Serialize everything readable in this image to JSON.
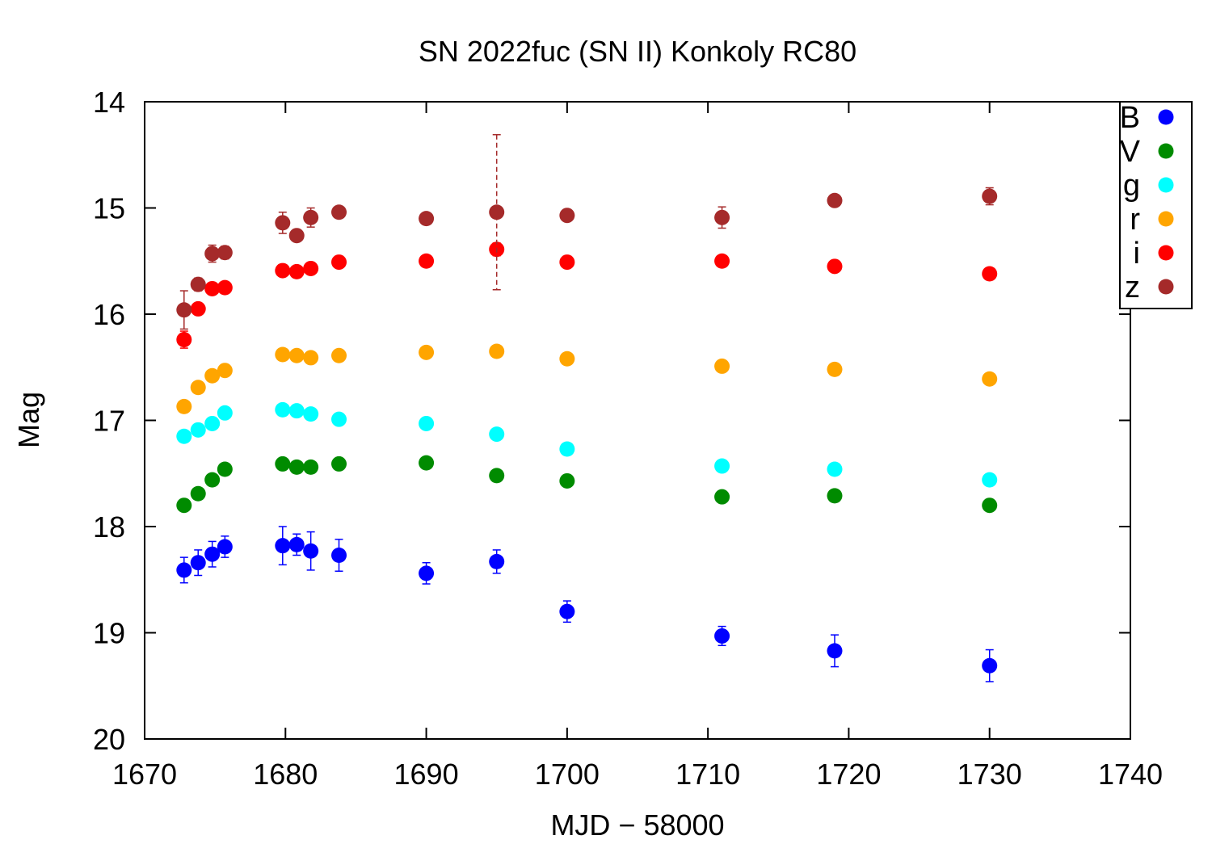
{
  "chart_data": {
    "type": "scatter",
    "title": "SN 2022fuc (SN II) Konkoly RC80",
    "xlabel": "MJD − 58000",
    "ylabel": "Mag",
    "xlim": [
      1670,
      1740
    ],
    "ylim": [
      14,
      20
    ],
    "y_inverted": true,
    "x_ticks": [
      "1670",
      "1680",
      "1690",
      "1700",
      "1710",
      "1720",
      "1730",
      "1740"
    ],
    "y_ticks": [
      "14",
      "15",
      "16",
      "17",
      "18",
      "19",
      "20"
    ],
    "legend_position": "top-right",
    "grid": false,
    "series": [
      {
        "name": "B",
        "color": "#0000ff",
        "points": [
          {
            "x": 1672.8,
            "y": 18.41,
            "err": 0.12
          },
          {
            "x": 1673.8,
            "y": 18.34,
            "err": 0.12
          },
          {
            "x": 1674.8,
            "y": 18.26,
            "err": 0.12
          },
          {
            "x": 1675.7,
            "y": 18.19,
            "err": 0.1
          },
          {
            "x": 1679.8,
            "y": 18.18,
            "err": 0.18
          },
          {
            "x": 1680.8,
            "y": 18.17,
            "err": 0.1
          },
          {
            "x": 1681.8,
            "y": 18.23,
            "err": 0.18
          },
          {
            "x": 1683.8,
            "y": 18.27,
            "err": 0.15
          },
          {
            "x": 1690.0,
            "y": 18.44,
            "err": 0.1
          },
          {
            "x": 1695.0,
            "y": 18.33,
            "err": 0.11
          },
          {
            "x": 1700.0,
            "y": 18.8,
            "err": 0.1
          },
          {
            "x": 1711.0,
            "y": 19.03,
            "err": 0.09
          },
          {
            "x": 1719.0,
            "y": 19.17,
            "err": 0.15
          },
          {
            "x": 1730.0,
            "y": 19.31,
            "err": 0.15
          }
        ]
      },
      {
        "name": "V",
        "color": "#008b00",
        "points": [
          {
            "x": 1672.8,
            "y": 17.8,
            "err": 0.03
          },
          {
            "x": 1673.8,
            "y": 17.69,
            "err": 0.03
          },
          {
            "x": 1674.8,
            "y": 17.56,
            "err": 0.03
          },
          {
            "x": 1675.7,
            "y": 17.46,
            "err": 0.03
          },
          {
            "x": 1679.8,
            "y": 17.41,
            "err": 0.03
          },
          {
            "x": 1680.8,
            "y": 17.44,
            "err": 0.03
          },
          {
            "x": 1681.8,
            "y": 17.44,
            "err": 0.03
          },
          {
            "x": 1683.8,
            "y": 17.41,
            "err": 0.03
          },
          {
            "x": 1690.0,
            "y": 17.4,
            "err": 0.03
          },
          {
            "x": 1695.0,
            "y": 17.52,
            "err": 0.03
          },
          {
            "x": 1700.0,
            "y": 17.57,
            "err": 0.03
          },
          {
            "x": 1711.0,
            "y": 17.72,
            "err": 0.03
          },
          {
            "x": 1719.0,
            "y": 17.71,
            "err": 0.03
          },
          {
            "x": 1730.0,
            "y": 17.8,
            "err": 0.03
          }
        ]
      },
      {
        "name": "g",
        "color": "#00ffff",
        "points": [
          {
            "x": 1672.8,
            "y": 17.15,
            "err": 0.03
          },
          {
            "x": 1673.8,
            "y": 17.09,
            "err": 0.03
          },
          {
            "x": 1674.8,
            "y": 17.03,
            "err": 0.03
          },
          {
            "x": 1675.7,
            "y": 16.93,
            "err": 0.03
          },
          {
            "x": 1679.8,
            "y": 16.9,
            "err": 0.03
          },
          {
            "x": 1680.8,
            "y": 16.91,
            "err": 0.03
          },
          {
            "x": 1681.8,
            "y": 16.94,
            "err": 0.03
          },
          {
            "x": 1683.8,
            "y": 16.99,
            "err": 0.03
          },
          {
            "x": 1690.0,
            "y": 17.03,
            "err": 0.03
          },
          {
            "x": 1695.0,
            "y": 17.13,
            "err": 0.03
          },
          {
            "x": 1700.0,
            "y": 17.27,
            "err": 0.03
          },
          {
            "x": 1711.0,
            "y": 17.43,
            "err": 0.04
          },
          {
            "x": 1719.0,
            "y": 17.46,
            "err": 0.05
          },
          {
            "x": 1730.0,
            "y": 17.56,
            "err": 0.03
          }
        ]
      },
      {
        "name": "r",
        "color": "#ffa500",
        "points": [
          {
            "x": 1672.8,
            "y": 16.87,
            "err": 0.03
          },
          {
            "x": 1673.8,
            "y": 16.69,
            "err": 0.03
          },
          {
            "x": 1674.8,
            "y": 16.58,
            "err": 0.03
          },
          {
            "x": 1675.7,
            "y": 16.53,
            "err": 0.03
          },
          {
            "x": 1679.8,
            "y": 16.38,
            "err": 0.03
          },
          {
            "x": 1680.8,
            "y": 16.39,
            "err": 0.03
          },
          {
            "x": 1681.8,
            "y": 16.41,
            "err": 0.03
          },
          {
            "x": 1683.8,
            "y": 16.39,
            "err": 0.03
          },
          {
            "x": 1690.0,
            "y": 16.36,
            "err": 0.03
          },
          {
            "x": 1695.0,
            "y": 16.35,
            "err": 0.03
          },
          {
            "x": 1700.0,
            "y": 16.42,
            "err": 0.03
          },
          {
            "x": 1711.0,
            "y": 16.49,
            "err": 0.03
          },
          {
            "x": 1719.0,
            "y": 16.52,
            "err": 0.03
          },
          {
            "x": 1730.0,
            "y": 16.61,
            "err": 0.03
          }
        ]
      },
      {
        "name": "i",
        "color": "#ff0000",
        "points": [
          {
            "x": 1672.8,
            "y": 16.24,
            "err": 0.08
          },
          {
            "x": 1673.8,
            "y": 15.95,
            "err": 0.03
          },
          {
            "x": 1674.8,
            "y": 15.76,
            "err": 0.03
          },
          {
            "x": 1675.7,
            "y": 15.75,
            "err": 0.03
          },
          {
            "x": 1679.8,
            "y": 15.59,
            "err": 0.03
          },
          {
            "x": 1680.8,
            "y": 15.6,
            "err": 0.03
          },
          {
            "x": 1681.8,
            "y": 15.57,
            "err": 0.03
          },
          {
            "x": 1683.8,
            "y": 15.51,
            "err": 0.03
          },
          {
            "x": 1690.0,
            "y": 15.5,
            "err": 0.03
          },
          {
            "x": 1695.0,
            "y": 15.39,
            "err": 0.06
          },
          {
            "x": 1700.0,
            "y": 15.51,
            "err": 0.03
          },
          {
            "x": 1711.0,
            "y": 15.5,
            "err": 0.03
          },
          {
            "x": 1719.0,
            "y": 15.55,
            "err": 0.03
          },
          {
            "x": 1730.0,
            "y": 15.62,
            "err": 0.03
          }
        ]
      },
      {
        "name": "z",
        "color": "#a52a2a",
        "points": [
          {
            "x": 1672.8,
            "y": 15.96,
            "err": 0.18
          },
          {
            "x": 1673.8,
            "y": 15.72,
            "err": 0.06
          },
          {
            "x": 1674.8,
            "y": 15.43,
            "err": 0.08
          },
          {
            "x": 1675.7,
            "y": 15.42,
            "err": 0.06
          },
          {
            "x": 1679.8,
            "y": 15.14,
            "err": 0.1
          },
          {
            "x": 1680.8,
            "y": 15.26,
            "err": 0.04
          },
          {
            "x": 1681.8,
            "y": 15.09,
            "err": 0.09
          },
          {
            "x": 1683.8,
            "y": 15.04,
            "err": 0.04
          },
          {
            "x": 1690.0,
            "y": 15.1,
            "err": 0.03
          },
          {
            "x": 1695.0,
            "y": 15.04,
            "err": 0.73
          },
          {
            "x": 1700.0,
            "y": 15.07,
            "err": 0.03
          },
          {
            "x": 1711.0,
            "y": 15.09,
            "err": 0.1
          },
          {
            "x": 1719.0,
            "y": 14.93,
            "err": 0.03
          },
          {
            "x": 1730.0,
            "y": 14.89,
            "err": 0.08
          }
        ]
      }
    ]
  }
}
